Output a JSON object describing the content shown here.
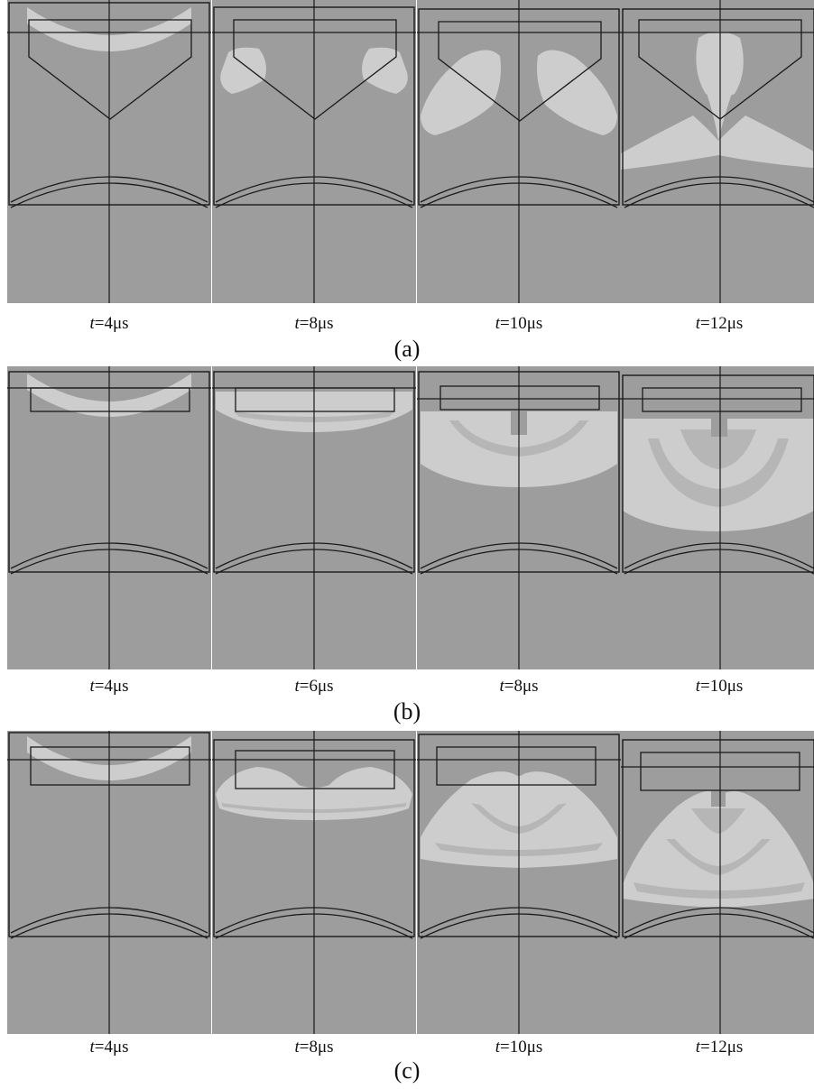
{
  "colors": {
    "background": "#9d9d9d",
    "front_light": "#cdcdcd",
    "front_mid": "#b6b6b6",
    "outline": "#1a1a1a"
  },
  "rows": [
    {
      "caption": "(a)",
      "liner": "conical",
      "panels": [
        {
          "t_var": "t",
          "t_value": "=4μs"
        },
        {
          "t_var": "t",
          "t_value": "=8μs"
        },
        {
          "t_var": "t",
          "t_value": "=10μs"
        },
        {
          "t_var": "t",
          "t_value": "=12μs"
        }
      ]
    },
    {
      "caption": "(b)",
      "liner": "flat",
      "panels": [
        {
          "t_var": "t",
          "t_value": "=4μs"
        },
        {
          "t_var": "t",
          "t_value": "=6μs"
        },
        {
          "t_var": "t",
          "t_value": "=8μs"
        },
        {
          "t_var": "t",
          "t_value": "=10μs"
        }
      ]
    },
    {
      "caption": "(c)",
      "liner": "thick-flat",
      "panels": [
        {
          "t_var": "t",
          "t_value": "=4μs"
        },
        {
          "t_var": "t",
          "t_value": "=8μs"
        },
        {
          "t_var": "t",
          "t_value": "=10μs"
        },
        {
          "t_var": "t",
          "t_value": "=12μs"
        }
      ]
    }
  ]
}
